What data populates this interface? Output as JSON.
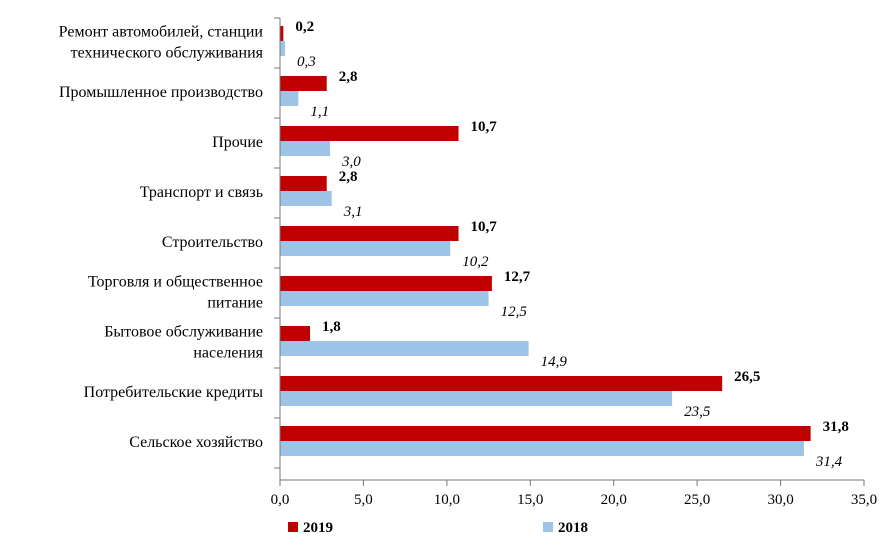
{
  "chart_data": {
    "type": "bar",
    "orientation": "horizontal",
    "categories": [
      [
        "Ремонт автомобилей, станции",
        "технического обслуживания"
      ],
      [
        "Промышленное производство"
      ],
      [
        "Прочие"
      ],
      [
        "Транспорт и связь"
      ],
      [
        "Строительство"
      ],
      [
        "Торговля и общественное",
        "питание"
      ],
      [
        "Бытовое обслуживание",
        "населения"
      ],
      [
        "Потребительские  кредиты"
      ],
      [
        "Сельское хозяйство"
      ]
    ],
    "series": [
      {
        "name": "2019",
        "color": "#c00000",
        "values": [
          0.2,
          2.8,
          10.7,
          2.8,
          10.7,
          12.7,
          1.8,
          26.5,
          31.8
        ],
        "labels": [
          "0,2",
          "2,8",
          "10,7",
          "2,8",
          "10,7",
          "12,7",
          "1,8",
          "26,5",
          "31,8"
        ]
      },
      {
        "name": "2018",
        "color": "#9dc3e6",
        "values": [
          0.3,
          1.1,
          3.0,
          3.1,
          10.2,
          12.5,
          14.9,
          23.5,
          31.4
        ],
        "labels": [
          "0,3",
          "1,1",
          "3,0",
          "3,1",
          "10,2",
          "12,5",
          "14,9",
          "23,5",
          "31,4"
        ]
      }
    ],
    "xlim": [
      0,
      35
    ],
    "xticks": [
      "0,0",
      "5,0",
      "10,0",
      "15,0",
      "20,0",
      "25,0",
      "30,0",
      "35,0"
    ],
    "grid": false,
    "legend": "bottom"
  }
}
